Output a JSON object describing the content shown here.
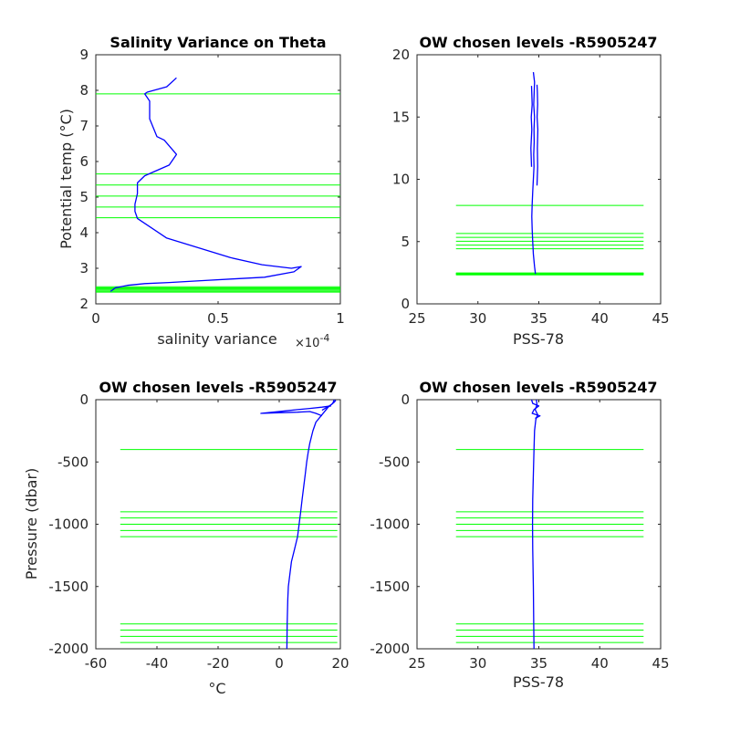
{
  "colors": {
    "profile": "#0000ff",
    "levels": "#00ff00",
    "axes": "#262626",
    "background": "#ffffff"
  },
  "chart_data": [
    {
      "type": "line",
      "title": "Salinity Variance on Theta",
      "xlabel": "salinity variance",
      "x_exponent_prefix": "×10",
      "x_exponent_power": "-4",
      "ylabel": "Potential temp (",
      "ylabel_unit": "°C)",
      "xlim": [
        0,
        1
      ],
      "ylim": [
        2,
        9
      ],
      "xticks": [
        0,
        0.5,
        1
      ],
      "xtick_labels": [
        "0",
        "0.5",
        "1"
      ],
      "yticks": [
        2,
        3,
        4,
        5,
        6,
        7,
        8,
        9
      ],
      "ytick_labels": [
        "2",
        "3",
        "4",
        "5",
        "6",
        "7",
        "8",
        "9"
      ],
      "series": [
        {
          "x": [
            0.33,
            0.29,
            0.21,
            0.2,
            0.22,
            0.22,
            0.25,
            0.28,
            0.33,
            0.3,
            0.2,
            0.17,
            0.17,
            0.16,
            0.16,
            0.17,
            0.29,
            0.55,
            0.68,
            0.8,
            0.84,
            0.81,
            0.69,
            0.56,
            0.43,
            0.3,
            0.2,
            0.13,
            0.08,
            0.06
          ],
          "y": [
            8.35,
            8.1,
            7.95,
            7.9,
            7.7,
            7.2,
            6.7,
            6.6,
            6.2,
            5.9,
            5.6,
            5.4,
            5.1,
            4.8,
            4.6,
            4.4,
            3.85,
            3.3,
            3.1,
            3.0,
            3.05,
            2.9,
            2.75,
            2.7,
            2.65,
            2.6,
            2.57,
            2.52,
            2.45,
            2.35
          ]
        }
      ],
      "levels": [
        2.33,
        2.36,
        2.39,
        2.42,
        2.45,
        2.48,
        4.42,
        4.72,
        5.03,
        5.34,
        5.65,
        7.9
      ],
      "levels_x": [
        0,
        1
      ]
    },
    {
      "type": "line",
      "title": "OW chosen levels -R5905247",
      "xlabel": "PSS-78",
      "ylabel": "",
      "xlim": [
        25,
        45
      ],
      "ylim": [
        0,
        20
      ],
      "xticks": [
        25,
        30,
        35,
        40,
        45
      ],
      "xtick_labels": [
        "25",
        "30",
        "35",
        "40",
        "45"
      ],
      "yticks": [
        0,
        5,
        10,
        15,
        20
      ],
      "ytick_labels": [
        "0",
        "5",
        "10",
        "15",
        "20"
      ],
      "series": [
        {
          "x": [
            34.72,
            34.65,
            34.55,
            34.5,
            34.45,
            34.42,
            34.45,
            34.5,
            34.55,
            34.6,
            34.58,
            34.62,
            34.6,
            34.65,
            34.58,
            34.62,
            34.65,
            34.55
          ],
          "y": [
            2.4,
            3.0,
            4.0,
            5.0,
            6.0,
            7.0,
            8.0,
            9.0,
            10.0,
            11.0,
            12.0,
            13.0,
            14.0,
            15.0,
            16.0,
            17.0,
            17.8,
            18.6
          ]
        },
        {
          "x": [
            34.85,
            34.9,
            34.88,
            34.92,
            34.86,
            34.9,
            34.88,
            34.85
          ],
          "y": [
            9.5,
            11.0,
            12.5,
            14.0,
            15.0,
            16.0,
            17.0,
            17.6
          ]
        },
        {
          "x": [
            34.4,
            34.35,
            34.42,
            34.38,
            34.45,
            34.4
          ],
          "y": [
            11.0,
            12.5,
            14.0,
            15.0,
            16.0,
            17.5
          ]
        }
      ],
      "levels": [
        2.33,
        2.36,
        2.39,
        2.42,
        2.45,
        2.48,
        4.42,
        4.72,
        5.03,
        5.34,
        5.65,
        7.9
      ],
      "levels_x": [
        28.2,
        43.6
      ]
    },
    {
      "type": "line",
      "title": "OW chosen levels -R5905247",
      "xlabel": "°C",
      "ylabel": "Pressure (dbar)",
      "xlim": [
        -60,
        20
      ],
      "ylim": [
        -2000,
        0
      ],
      "xticks": [
        -60,
        -40,
        -20,
        0,
        20
      ],
      "xtick_labels": [
        "-60",
        "-40",
        "-20",
        "0",
        "20"
      ],
      "yticks": [
        -2000,
        -1500,
        -1000,
        -500,
        0
      ],
      "ytick_labels": [
        "-2000",
        "-1500",
        "-1000",
        "-500",
        "0"
      ],
      "series": [
        {
          "x": [
            18,
            17.5,
            16,
            15,
            14,
            12,
            11,
            10,
            9.5,
            9,
            8.5,
            8,
            7.5,
            7,
            6.5,
            6,
            5,
            4,
            3.5,
            3,
            2.8,
            2.6,
            2.5
          ],
          "y": [
            0,
            -30,
            -60,
            -90,
            -120,
            -180,
            -250,
            -350,
            -420,
            -500,
            -600,
            -700,
            -800,
            -900,
            -1000,
            -1100,
            -1200,
            -1300,
            -1400,
            -1500,
            -1600,
            -1800,
            -2000
          ]
        },
        {
          "x": [
            17,
            14,
            10,
            6,
            2,
            -2,
            -6,
            0,
            6,
            10,
            12,
            14
          ],
          "y": [
            -50,
            -60,
            -70,
            -80,
            -90,
            -100,
            -110,
            -105,
            -100,
            -95,
            -110,
            -130
          ]
        },
        {
          "x": [
            18.5,
            18,
            17,
            16,
            15,
            14
          ],
          "y": [
            -5,
            -20,
            -40,
            -55,
            -70,
            -85
          ]
        }
      ],
      "levels": [
        -400,
        -900,
        -950,
        -1000,
        -1050,
        -1100,
        -1800,
        -1850,
        -1900,
        -1950
      ],
      "levels_x": [
        -52,
        19
      ]
    },
    {
      "type": "line",
      "title": "OW chosen levels -R5905247",
      "xlabel": "PSS-78",
      "ylabel": "",
      "xlim": [
        25,
        45
      ],
      "ylim": [
        -2000,
        0
      ],
      "xticks": [
        25,
        30,
        35,
        40,
        45
      ],
      "xtick_labels": [
        "25",
        "30",
        "35",
        "40",
        "45"
      ],
      "yticks": [
        -2000,
        -1500,
        -1000,
        -500,
        0
      ],
      "ytick_labels": [
        "-2000",
        "-1500",
        "-1000",
        "-500",
        "0"
      ],
      "series": [
        {
          "x": [
            34.8,
            34.85,
            34.7,
            34.9,
            34.75,
            34.65,
            34.6,
            34.55,
            34.5,
            34.48,
            34.5,
            34.55,
            34.58,
            34.6
          ],
          "y": [
            0,
            -40,
            -80,
            -120,
            -160,
            -250,
            -400,
            -600,
            -800,
            -1000,
            -1200,
            -1500,
            -1800,
            -2000
          ]
        },
        {
          "x": [
            34.4,
            34.5,
            35.0,
            34.6,
            34.45,
            35.1,
            34.7
          ],
          "y": [
            0,
            -30,
            -50,
            -80,
            -110,
            -130,
            -150
          ]
        }
      ],
      "levels": [
        -400,
        -900,
        -950,
        -1000,
        -1050,
        -1100,
        -1800,
        -1850,
        -1900,
        -1950
      ],
      "levels_x": [
        28.2,
        43.6
      ]
    }
  ]
}
